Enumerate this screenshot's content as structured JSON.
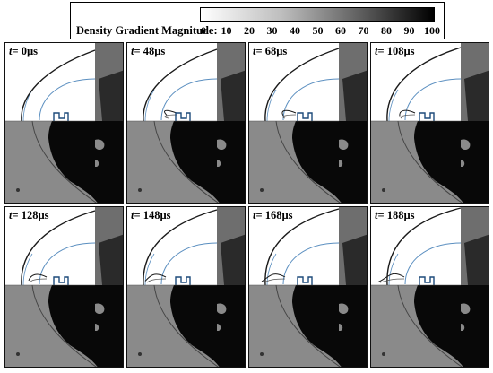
{
  "colorbar": {
    "label": "Density Gradient Magnitude:",
    "ticks": [
      "0",
      "10",
      "20",
      "30",
      "40",
      "50",
      "60",
      "70",
      "80",
      "90",
      "100"
    ],
    "min": 0,
    "max": 100,
    "low_color": "#ffffff",
    "high_color": "#000000"
  },
  "panels": [
    {
      "t_symbol": "t",
      "time": "= 0µs",
      "value_us": 0,
      "stage": 0
    },
    {
      "t_symbol": "t",
      "time": "= 48µs",
      "value_us": 48,
      "stage": 1
    },
    {
      "t_symbol": "t",
      "time": "= 68µs",
      "value_us": 68,
      "stage": 2
    },
    {
      "t_symbol": "t",
      "time": "= 108µs",
      "value_us": 108,
      "stage": 3
    },
    {
      "t_symbol": "t",
      "time": "= 128µs",
      "value_us": 128,
      "stage": 4
    },
    {
      "t_symbol": "t",
      "time": "= 148µs",
      "value_us": 148,
      "stage": 5
    },
    {
      "t_symbol": "t",
      "time": "= 168µs",
      "value_us": 168,
      "stage": 6
    },
    {
      "t_symbol": "t",
      "time": "= 188µs",
      "value_us": 188,
      "stage": 7
    }
  ],
  "colors": {
    "simulation_bg": "#ffffff",
    "experiment_bg": "#8a8a8a",
    "shadow": "#080808",
    "shock": "#1a1a1a",
    "contour": "#5b8fc0"
  }
}
